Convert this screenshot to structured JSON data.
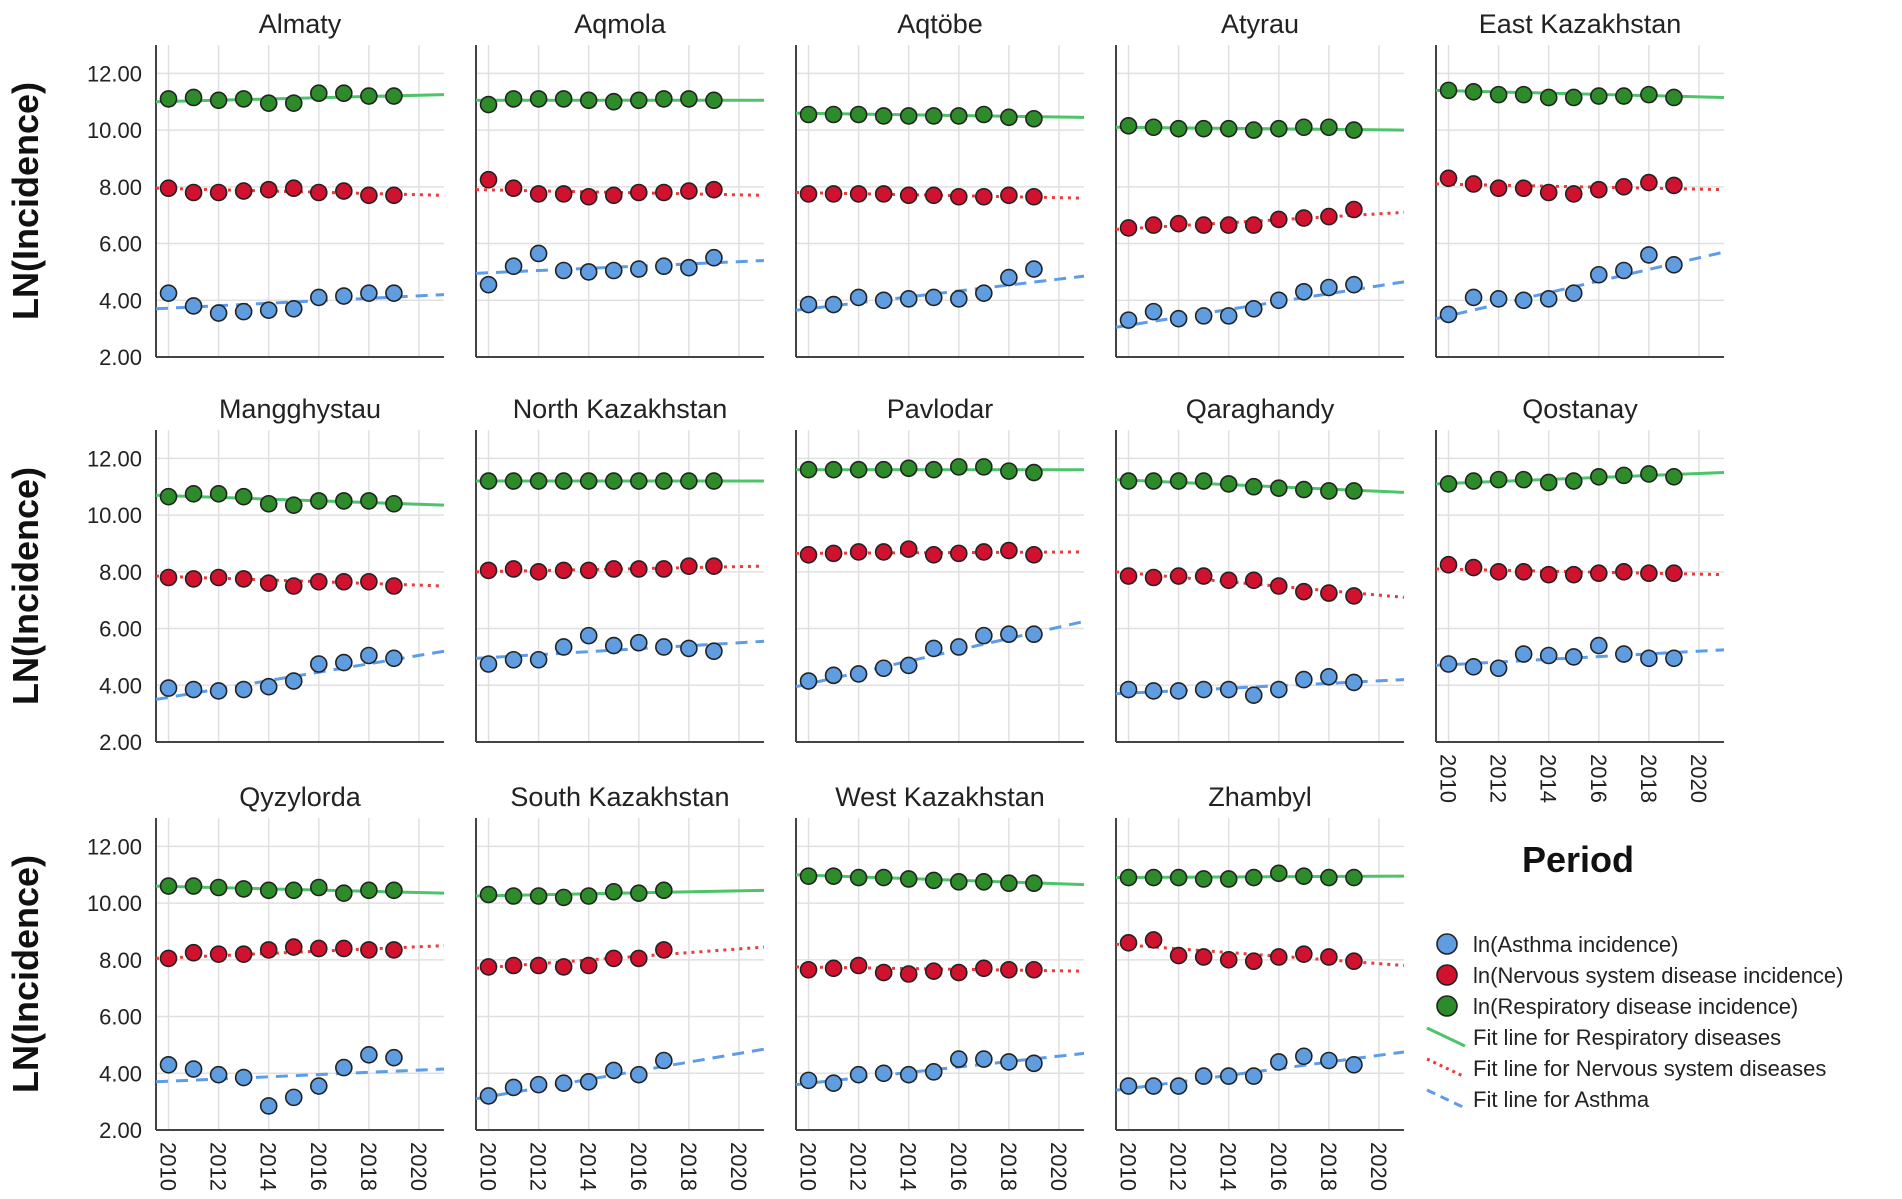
{
  "chart_data": {
    "type": "scatter",
    "panel_layout": "3 rows x 5 columns faceted small multiples",
    "ylabel": "LN(Incidence)",
    "xlabel": "Period",
    "ylim": [
      2,
      13
    ],
    "yticks": [
      2,
      4,
      6,
      8,
      10,
      12
    ],
    "ytick_labels": [
      "2.00",
      "4.00",
      "6.00",
      "8.00",
      "10.00",
      "12.00"
    ],
    "xlim": [
      2009.5,
      2021
    ],
    "xticks": [
      2010,
      2012,
      2014,
      2016,
      2018,
      2020
    ],
    "xtick_labels": [
      "2010",
      "2012",
      "2014",
      "2016",
      "2018",
      "2020"
    ],
    "years": [
      2010,
      2011,
      2012,
      2013,
      2014,
      2015,
      2016,
      2017,
      2018,
      2019
    ],
    "grid": true,
    "legend_position": "bottom-right",
    "colors": {
      "asthma": "#5f9de0",
      "nervous": "#d0122f",
      "respiratory": "#2e8b2a",
      "fit_respiratory": "#4cc46a",
      "fit_nervous": "#ea3b3b",
      "fit_asthma": "#5d9ce8",
      "marker_edge": "#222222",
      "grid": "#e0e0e0",
      "axis": "#444444"
    },
    "legend": [
      {
        "key": "asthma",
        "label": "ln(Asthma incidence)",
        "kind": "marker"
      },
      {
        "key": "nervous",
        "label": "ln(Nervous system disease incidence)",
        "kind": "marker"
      },
      {
        "key": "respiratory",
        "label": "ln(Respiratory disease incidence)",
        "kind": "marker"
      },
      {
        "key": "fit_respiratory",
        "label": "Fit line for Respiratory diseases",
        "kind": "solid"
      },
      {
        "key": "fit_nervous",
        "label": "Fit line for Nervous system diseases",
        "kind": "dotted"
      },
      {
        "key": "fit_asthma",
        "label": "Fit line for Asthma",
        "kind": "dashed"
      }
    ],
    "panels": [
      {
        "title": "Almaty",
        "respiratory": [
          11.1,
          11.15,
          11.05,
          11.1,
          10.95,
          10.95,
          11.3,
          11.3,
          11.2,
          11.2
        ],
        "nervous": [
          7.95,
          7.8,
          7.8,
          7.85,
          7.9,
          7.95,
          7.8,
          7.85,
          7.7,
          7.7
        ],
        "asthma": [
          4.25,
          3.8,
          3.55,
          3.6,
          3.65,
          3.7,
          4.1,
          4.15,
          4.25,
          4.25
        ],
        "fit_respiratory": [
          11.0,
          11.25
        ],
        "fit_nervous": [
          7.95,
          7.7
        ],
        "fit_asthma": [
          3.7,
          4.2
        ]
      },
      {
        "title": "Aqmola",
        "respiratory": [
          10.9,
          11.1,
          11.1,
          11.1,
          11.05,
          11.0,
          11.05,
          11.1,
          11.1,
          11.05
        ],
        "nervous": [
          8.25,
          7.95,
          7.75,
          7.75,
          7.65,
          7.7,
          7.8,
          7.8,
          7.85,
          7.9
        ],
        "asthma": [
          4.55,
          5.2,
          5.65,
          5.05,
          5.0,
          5.05,
          5.1,
          5.2,
          5.15,
          5.5
        ],
        "fit_respiratory": [
          11.05,
          11.05
        ],
        "fit_nervous": [
          7.9,
          7.7
        ],
        "fit_asthma": [
          4.95,
          5.4
        ]
      },
      {
        "title": "Aqtöbe",
        "respiratory": [
          10.55,
          10.55,
          10.55,
          10.5,
          10.5,
          10.5,
          10.5,
          10.55,
          10.45,
          10.4
        ],
        "nervous": [
          7.75,
          7.75,
          7.75,
          7.75,
          7.7,
          7.7,
          7.65,
          7.65,
          7.7,
          7.65
        ],
        "asthma": [
          3.85,
          3.85,
          4.1,
          4.0,
          4.05,
          4.1,
          4.05,
          4.25,
          4.8,
          5.1
        ],
        "fit_respiratory": [
          10.6,
          10.45
        ],
        "fit_nervous": [
          7.8,
          7.6
        ],
        "fit_asthma": [
          3.65,
          4.85
        ]
      },
      {
        "title": "Atyrau",
        "respiratory": [
          10.15,
          10.1,
          10.05,
          10.05,
          10.05,
          10.0,
          10.05,
          10.1,
          10.1,
          10.0
        ],
        "nervous": [
          6.55,
          6.65,
          6.7,
          6.65,
          6.65,
          6.65,
          6.85,
          6.9,
          6.95,
          7.2
        ],
        "asthma": [
          3.3,
          3.6,
          3.35,
          3.45,
          3.45,
          3.7,
          4.0,
          4.3,
          4.45,
          4.55
        ],
        "fit_respiratory": [
          10.1,
          10.0
        ],
        "fit_nervous": [
          6.5,
          7.1
        ],
        "fit_asthma": [
          3.05,
          4.65
        ]
      },
      {
        "title": "East Kazakhstan",
        "respiratory": [
          11.4,
          11.35,
          11.25,
          11.25,
          11.15,
          11.15,
          11.2,
          11.2,
          11.25,
          11.15
        ],
        "nervous": [
          8.3,
          8.1,
          7.95,
          7.95,
          7.8,
          7.75,
          7.9,
          8.0,
          8.15,
          8.05
        ],
        "asthma": [
          3.5,
          4.1,
          4.05,
          4.0,
          4.05,
          4.25,
          4.9,
          5.05,
          5.6,
          5.25
        ],
        "fit_respiratory": [
          11.4,
          11.15
        ],
        "fit_nervous": [
          8.1,
          7.9
        ],
        "fit_asthma": [
          3.35,
          5.7
        ]
      },
      {
        "title": "Mangghystau",
        "respiratory": [
          10.65,
          10.75,
          10.75,
          10.65,
          10.4,
          10.35,
          10.5,
          10.5,
          10.5,
          10.4
        ],
        "nervous": [
          7.8,
          7.75,
          7.8,
          7.75,
          7.6,
          7.5,
          7.65,
          7.65,
          7.65,
          7.5
        ],
        "asthma": [
          3.9,
          3.85,
          3.8,
          3.85,
          3.95,
          4.15,
          4.75,
          4.8,
          5.05,
          4.95
        ],
        "fit_respiratory": [
          10.7,
          10.35
        ],
        "fit_nervous": [
          7.85,
          7.5
        ],
        "fit_asthma": [
          3.5,
          5.2
        ]
      },
      {
        "title": "North Kazakhstan",
        "respiratory": [
          11.2,
          11.2,
          11.2,
          11.2,
          11.2,
          11.2,
          11.2,
          11.2,
          11.2,
          11.2
        ],
        "nervous": [
          8.05,
          8.1,
          8.0,
          8.05,
          8.05,
          8.1,
          8.1,
          8.1,
          8.2,
          8.2
        ],
        "asthma": [
          4.75,
          4.9,
          4.9,
          5.35,
          5.75,
          5.4,
          5.5,
          5.35,
          5.3,
          5.2
        ],
        "fit_respiratory": [
          11.2,
          11.2
        ],
        "fit_nervous": [
          8.0,
          8.2
        ],
        "fit_asthma": [
          4.95,
          5.55
        ]
      },
      {
        "title": "Pavlodar",
        "respiratory": [
          11.6,
          11.6,
          11.6,
          11.6,
          11.65,
          11.6,
          11.7,
          11.7,
          11.55,
          11.5
        ],
        "nervous": [
          8.6,
          8.65,
          8.7,
          8.7,
          8.8,
          8.6,
          8.65,
          8.7,
          8.75,
          8.6
        ],
        "asthma": [
          4.15,
          4.35,
          4.4,
          4.6,
          4.7,
          5.3,
          5.35,
          5.75,
          5.8,
          5.8
        ],
        "fit_respiratory": [
          11.6,
          11.6
        ],
        "fit_nervous": [
          8.65,
          8.7
        ],
        "fit_asthma": [
          3.95,
          6.25
        ]
      },
      {
        "title": "Qaraghandy",
        "respiratory": [
          11.2,
          11.2,
          11.2,
          11.2,
          11.1,
          11.0,
          10.95,
          10.9,
          10.85,
          10.85
        ],
        "nervous": [
          7.85,
          7.8,
          7.85,
          7.85,
          7.7,
          7.7,
          7.5,
          7.3,
          7.25,
          7.15
        ],
        "asthma": [
          3.85,
          3.8,
          3.8,
          3.85,
          3.85,
          3.65,
          3.85,
          4.2,
          4.3,
          4.1
        ],
        "fit_respiratory": [
          11.25,
          10.8
        ],
        "fit_nervous": [
          8.0,
          7.1
        ],
        "fit_asthma": [
          3.7,
          4.2
        ]
      },
      {
        "title": "Qostanay",
        "respiratory": [
          11.1,
          11.2,
          11.25,
          11.25,
          11.15,
          11.2,
          11.35,
          11.4,
          11.45,
          11.35
        ],
        "nervous": [
          8.25,
          8.15,
          8.0,
          8.0,
          7.9,
          7.9,
          7.95,
          8.0,
          7.95,
          7.95
        ],
        "asthma": [
          4.75,
          4.65,
          4.6,
          5.1,
          5.05,
          5.0,
          5.4,
          5.1,
          4.95,
          4.95
        ],
        "fit_respiratory": [
          11.1,
          11.5
        ],
        "fit_nervous": [
          8.1,
          7.9
        ],
        "fit_asthma": [
          4.7,
          5.25
        ]
      },
      {
        "title": "Qyzylorda",
        "respiratory": [
          10.6,
          10.6,
          10.55,
          10.5,
          10.45,
          10.45,
          10.55,
          10.35,
          10.45,
          10.45
        ],
        "nervous": [
          8.05,
          8.25,
          8.2,
          8.2,
          8.35,
          8.45,
          8.4,
          8.4,
          8.35,
          8.35
        ],
        "asthma": [
          4.3,
          4.15,
          3.95,
          3.85,
          2.85,
          3.15,
          3.55,
          4.2,
          4.65,
          4.55
        ],
        "fit_respiratory": [
          10.6,
          10.35
        ],
        "fit_nervous": [
          8.05,
          8.5
        ],
        "fit_asthma": [
          3.7,
          4.15
        ]
      },
      {
        "title": "South Kazakhstan",
        "respiratory": [
          10.3,
          10.25,
          10.25,
          10.2,
          10.25,
          10.4,
          10.35,
          10.45,
          null,
          null
        ],
        "nervous": [
          7.75,
          7.8,
          7.8,
          7.75,
          7.8,
          8.05,
          8.05,
          8.35,
          null,
          null
        ],
        "asthma": [
          3.2,
          3.5,
          3.6,
          3.65,
          3.7,
          4.1,
          3.95,
          4.45,
          null,
          null
        ],
        "fit_respiratory": [
          10.25,
          10.45
        ],
        "fit_nervous": [
          7.7,
          8.45
        ],
        "fit_asthma": [
          3.1,
          4.85
        ]
      },
      {
        "title": "West Kazakhstan",
        "respiratory": [
          10.95,
          10.95,
          10.9,
          10.9,
          10.85,
          10.8,
          10.75,
          10.75,
          10.7,
          10.7
        ],
        "nervous": [
          7.65,
          7.7,
          7.8,
          7.55,
          7.5,
          7.6,
          7.55,
          7.7,
          7.65,
          7.65
        ],
        "asthma": [
          3.75,
          3.65,
          3.95,
          4.0,
          3.95,
          4.05,
          4.5,
          4.5,
          4.4,
          4.35
        ],
        "fit_respiratory": [
          11.0,
          10.65
        ],
        "fit_nervous": [
          7.75,
          7.6
        ],
        "fit_asthma": [
          3.6,
          4.7
        ]
      },
      {
        "title": "Zhambyl",
        "respiratory": [
          10.9,
          10.9,
          10.9,
          10.85,
          10.85,
          10.9,
          11.05,
          10.95,
          10.9,
          10.9
        ],
        "nervous": [
          8.6,
          8.7,
          8.15,
          8.1,
          8.0,
          7.95,
          8.1,
          8.2,
          8.1,
          7.95
        ],
        "asthma": [
          3.55,
          3.55,
          3.55,
          3.9,
          3.9,
          3.9,
          4.4,
          4.6,
          4.45,
          4.3
        ],
        "fit_respiratory": [
          10.9,
          10.95
        ],
        "fit_nervous": [
          8.55,
          7.8
        ],
        "fit_asthma": [
          3.4,
          4.75
        ]
      }
    ]
  }
}
